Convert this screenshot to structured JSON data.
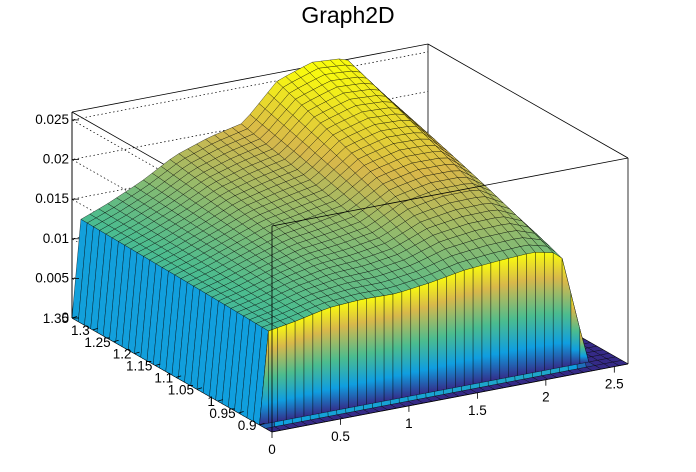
{
  "chart_data": {
    "type": "surface3d",
    "title": "Graph2D",
    "xlabel": "",
    "ylabel": "",
    "zlabel": "",
    "xlim": [
      0,
      2.6
    ],
    "ylim": [
      0.87,
      1.35
    ],
    "zlim": [
      0,
      0.026
    ],
    "x_ticks": [
      "0",
      "0.5",
      "1",
      "1.5",
      "2",
      "2.5"
    ],
    "y_ticks": [
      "0.9",
      "0.95",
      "1",
      "1.05",
      "1.1",
      "1.15",
      "1.2",
      "1.25",
      "1.3",
      "1.35"
    ],
    "z_ticks": [
      "0",
      "0.005",
      "0.01",
      "0.015",
      "0.02",
      "0.025"
    ],
    "grid": true,
    "palette": "kBird",
    "colors": {
      "low": "#352a87",
      "mid_low": "#0f9ee0",
      "mid": "#4bbc8f",
      "mid_high": "#d8b84a",
      "high": "#f9fb0e",
      "mesh_line": "#000000"
    },
    "surface_profile": {
      "x": [
        0,
        0.25,
        0.5,
        0.75,
        1.0,
        1.25,
        1.5,
        1.75,
        2.0,
        2.2,
        2.4,
        2.6
      ],
      "z_at_y_min": [
        0.0114,
        0.012,
        0.0128,
        0.0128,
        0.0125,
        0.013,
        0.0133,
        0.0135,
        0.0138,
        0.0135,
        0,
        0
      ],
      "z_at_y_max": [
        0.0118,
        0.0135,
        0.0155,
        0.018,
        0.0195,
        0.0205,
        0.025,
        0.0265,
        0.0262,
        0.022,
        0,
        0
      ],
      "zero_region_x_lt": 0.05,
      "zero_region_y_lt": 0.9
    }
  }
}
